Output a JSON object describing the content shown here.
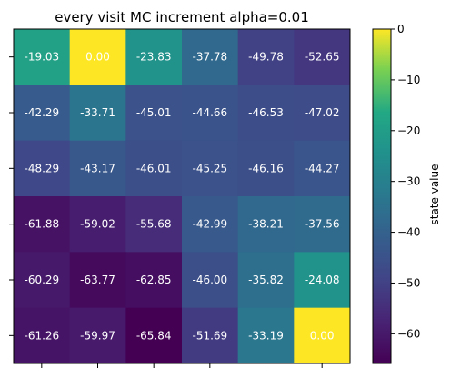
{
  "chart_data": {
    "type": "heatmap",
    "title": "every visit MC increment alpha=0.01",
    "colorbar_label": "state value",
    "colormap": "viridis",
    "vmin": -65.84,
    "vmax": 0,
    "colorbar_ticks": [
      0,
      -10,
      -20,
      -30,
      -40,
      -50,
      -60
    ],
    "rows": 6,
    "cols": 6,
    "values": [
      [
        -19.03,
        0.0,
        -23.83,
        -37.78,
        -49.78,
        -52.65
      ],
      [
        -42.29,
        -33.71,
        -45.01,
        -44.66,
        -46.53,
        -47.02
      ],
      [
        -48.29,
        -43.17,
        -46.01,
        -45.25,
        -46.16,
        -44.27
      ],
      [
        -61.88,
        -59.02,
        -55.68,
        -42.99,
        -38.21,
        -37.56
      ],
      [
        -60.29,
        -63.77,
        -62.85,
        -46.0,
        -35.82,
        -24.08
      ],
      [
        -61.26,
        -59.97,
        -65.84,
        -51.69,
        -33.19,
        0.0
      ]
    ],
    "cell_labels": [
      [
        "-19.03",
        "0.00",
        "-23.83",
        "-37.78",
        "-49.78",
        "-52.65"
      ],
      [
        "-42.29",
        "-33.71",
        "-45.01",
        "-44.66",
        "-46.53",
        "-47.02"
      ],
      [
        "-48.29",
        "-43.17",
        "-46.01",
        "-45.25",
        "-46.16",
        "-44.27"
      ],
      [
        "-61.88",
        "-59.02",
        "-55.68",
        "-42.99",
        "-38.21",
        "-37.56"
      ],
      [
        "-60.29",
        "-63.77",
        "-62.85",
        "-46.00",
        "-35.82",
        "-24.08"
      ],
      [
        "-61.26",
        "-59.97",
        "-65.84",
        "-51.69",
        "-33.19",
        "0.00"
      ]
    ],
    "colorbar_tick_labels": [
      "0",
      "−10",
      "−20",
      "−30",
      "−40",
      "−50",
      "−60"
    ],
    "x_tick_labels": [],
    "y_tick_labels": [],
    "legend": "none",
    "grid": false
  }
}
